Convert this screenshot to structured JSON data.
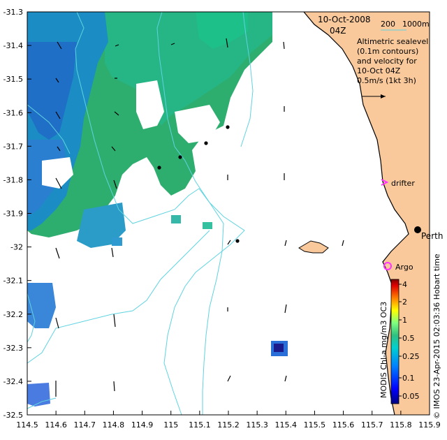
{
  "map": {
    "date": "10-Oct-2008",
    "time": "04Z",
    "scale_bar_labels": [
      "200",
      "1000m"
    ],
    "legend_lines": [
      "Altimetric sealevel",
      "(0.1m contours)",
      "and velocity for",
      "10-Oct 04Z",
      "0.5m/s (1kt 3h)"
    ],
    "drifter_label": "drifter",
    "argo_label": "Argo",
    "city_label": "Perth",
    "hobart_note": "Hobart time",
    "colorbar_caption": "MODIS Chl-a mg/m3 OC3",
    "credit": "© IMOS 23-Apr-2015 02:03:36 Hobart time",
    "colorbar_ticks": [
      "4",
      "2",
      "1",
      "0.5",
      "0.25",
      "0.1",
      "0.05"
    ],
    "x_ticks": [
      "114.5",
      "114.6",
      "114.7",
      "114.8",
      "114.9",
      "115",
      "115.1",
      "115.2",
      "115.3",
      "115.4",
      "115.5",
      "115.6",
      "115.7",
      "115.8",
      "115.9"
    ],
    "y_ticks": [
      "-31.3",
      "-31.4",
      "-31.5",
      "-31.6",
      "-31.7",
      "-31.8",
      "-31.9",
      "-32",
      "-32.1",
      "-32.2",
      "-32.3",
      "-32.4",
      "-32.5"
    ],
    "colors": {
      "land": "#f9c89b",
      "contour": "#5fd3e0",
      "drifter_marker": "#ff33ff",
      "argo_marker": "#ff33ff"
    }
  }
}
